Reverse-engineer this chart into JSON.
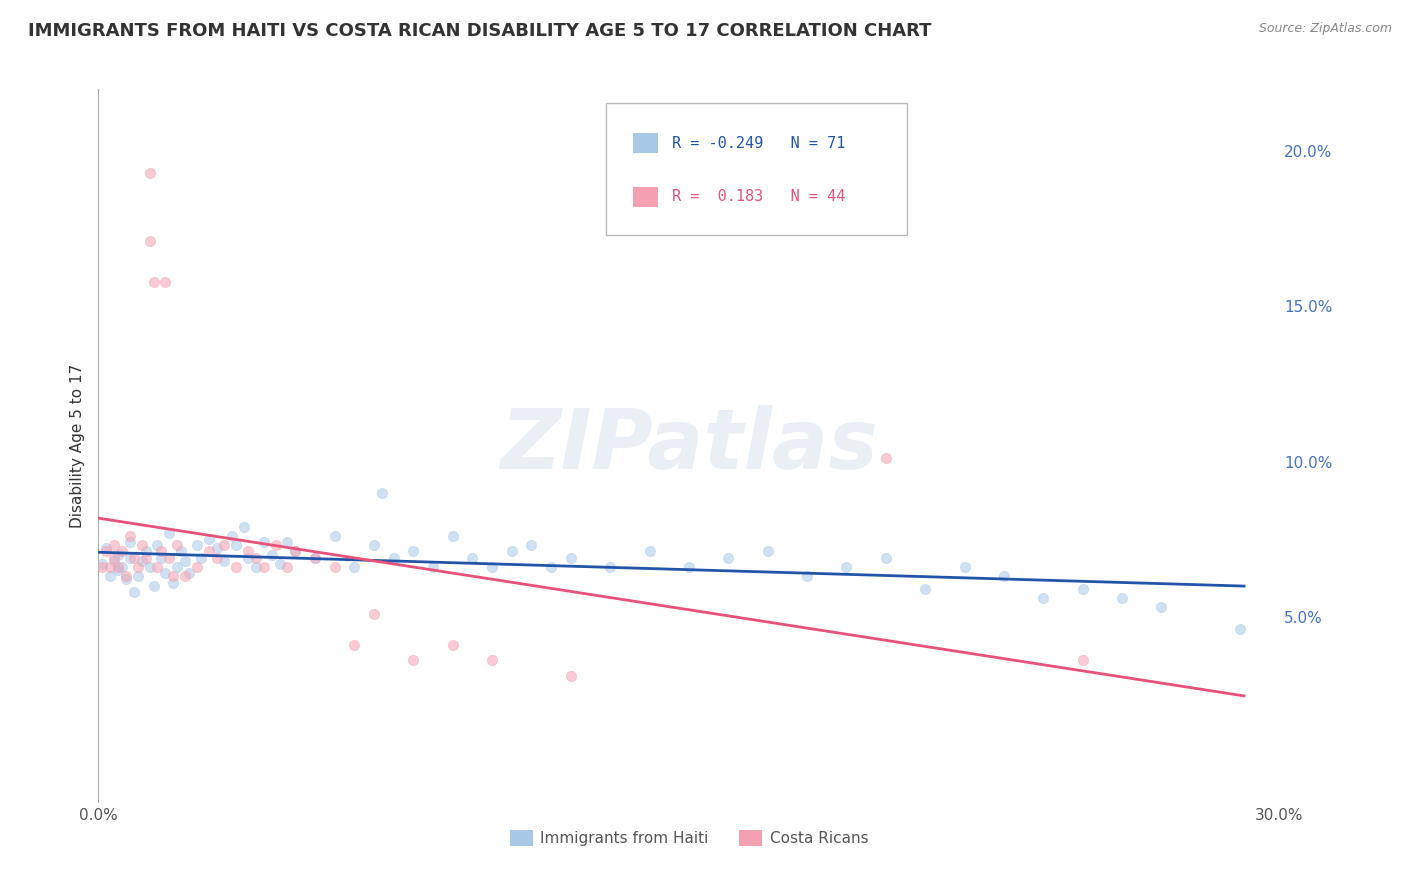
{
  "title": "IMMIGRANTS FROM HAITI VS COSTA RICAN DISABILITY AGE 5 TO 17 CORRELATION CHART",
  "source": "Source: ZipAtlas.com",
  "ylabel": "Disability Age 5 to 17",
  "xlim": [
    0.0,
    0.3
  ],
  "ylim": [
    -0.01,
    0.22
  ],
  "ytick_right_labels": [
    "5.0%",
    "10.0%",
    "15.0%",
    "20.0%"
  ],
  "ytick_right_values": [
    0.05,
    0.1,
    0.15,
    0.2
  ],
  "xtick_labels": [
    "0.0%",
    "30.0%"
  ],
  "xtick_values": [
    0.0,
    0.3
  ],
  "legend_entries": [
    {
      "label": "Immigrants from Haiti",
      "R": "-0.249",
      "N": "71",
      "color": "#a8c8e8",
      "trend_color": "#2255aa"
    },
    {
      "label": "Costa Ricans",
      "R": "0.183",
      "N": "44",
      "color": "#f4a0b0",
      "trend_color": "#e8527a"
    }
  ],
  "haiti_x": [
    0.001,
    0.002,
    0.003,
    0.004,
    0.005,
    0.005,
    0.006,
    0.007,
    0.008,
    0.008,
    0.009,
    0.01,
    0.011,
    0.012,
    0.013,
    0.014,
    0.015,
    0.016,
    0.017,
    0.018,
    0.019,
    0.02,
    0.021,
    0.022,
    0.023,
    0.025,
    0.026,
    0.028,
    0.03,
    0.032,
    0.034,
    0.035,
    0.037,
    0.038,
    0.04,
    0.042,
    0.044,
    0.046,
    0.048,
    0.05,
    0.055,
    0.06,
    0.065,
    0.07,
    0.072,
    0.075,
    0.08,
    0.085,
    0.09,
    0.095,
    0.1,
    0.105,
    0.11,
    0.115,
    0.12,
    0.13,
    0.14,
    0.15,
    0.16,
    0.17,
    0.18,
    0.19,
    0.2,
    0.21,
    0.22,
    0.23,
    0.24,
    0.25,
    0.26,
    0.27,
    0.29
  ],
  "haiti_y": [
    0.067,
    0.072,
    0.063,
    0.068,
    0.065,
    0.07,
    0.066,
    0.062,
    0.069,
    0.074,
    0.058,
    0.063,
    0.068,
    0.071,
    0.066,
    0.06,
    0.073,
    0.069,
    0.064,
    0.077,
    0.061,
    0.066,
    0.071,
    0.068,
    0.064,
    0.073,
    0.069,
    0.075,
    0.072,
    0.068,
    0.076,
    0.073,
    0.079,
    0.069,
    0.066,
    0.074,
    0.07,
    0.067,
    0.074,
    0.071,
    0.069,
    0.076,
    0.066,
    0.073,
    0.09,
    0.069,
    0.071,
    0.066,
    0.076,
    0.069,
    0.066,
    0.071,
    0.073,
    0.066,
    0.069,
    0.066,
    0.071,
    0.066,
    0.069,
    0.071,
    0.063,
    0.066,
    0.069,
    0.059,
    0.066,
    0.063,
    0.056,
    0.059,
    0.056,
    0.053,
    0.046
  ],
  "cr_x": [
    0.001,
    0.002,
    0.003,
    0.004,
    0.004,
    0.005,
    0.006,
    0.007,
    0.008,
    0.009,
    0.01,
    0.011,
    0.012,
    0.013,
    0.013,
    0.014,
    0.015,
    0.016,
    0.017,
    0.018,
    0.019,
    0.02,
    0.022,
    0.025,
    0.028,
    0.03,
    0.032,
    0.035,
    0.038,
    0.04,
    0.042,
    0.045,
    0.048,
    0.05,
    0.055,
    0.06,
    0.065,
    0.07,
    0.08,
    0.09,
    0.1,
    0.12,
    0.2,
    0.25
  ],
  "cr_y": [
    0.066,
    0.071,
    0.066,
    0.073,
    0.069,
    0.066,
    0.071,
    0.063,
    0.076,
    0.069,
    0.066,
    0.073,
    0.069,
    0.193,
    0.171,
    0.158,
    0.066,
    0.071,
    0.158,
    0.069,
    0.063,
    0.073,
    0.063,
    0.066,
    0.071,
    0.069,
    0.073,
    0.066,
    0.071,
    0.069,
    0.066,
    0.073,
    0.066,
    0.071,
    0.069,
    0.066,
    0.041,
    0.051,
    0.036,
    0.041,
    0.036,
    0.031,
    0.101,
    0.036
  ],
  "watermark": "ZIPatlas",
  "background_color": "#ffffff",
  "grid_color": "#cccccc",
  "title_color": "#333333",
  "scatter_size": 55,
  "scatter_alpha": 0.55
}
